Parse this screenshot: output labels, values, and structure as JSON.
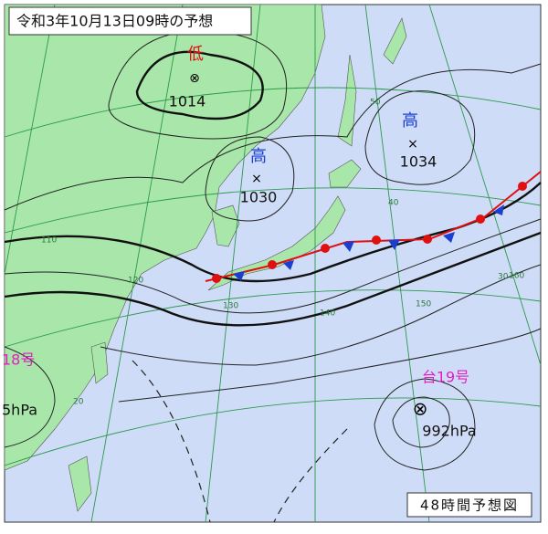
{
  "title": "令和3年10月13日09時の予想",
  "footer": "48時間予想図",
  "systems": [
    {
      "kind": "低",
      "pressure": "1014"
    },
    {
      "kind": "高",
      "pressure": "1030"
    },
    {
      "kind": "高",
      "pressure": "1034"
    }
  ],
  "storms": [
    {
      "name": "台19号",
      "pressure": "992hPa"
    },
    {
      "name": "18号",
      "pressure": "5hPa"
    }
  ],
  "grid_labels": [
    "50",
    "40",
    "30",
    "20",
    "110",
    "120",
    "130",
    "140",
    "150",
    "160"
  ]
}
